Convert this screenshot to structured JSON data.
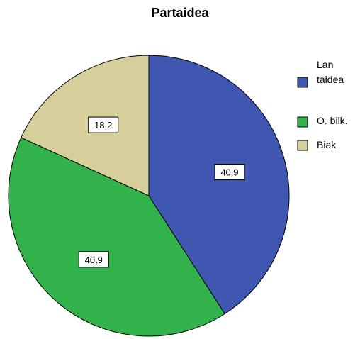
{
  "chart_data": {
    "type": "pie",
    "title": "Partaidea",
    "categories": [
      "Lan taldea",
      "O. bilk.",
      "Biak"
    ],
    "legend_lines": [
      [
        "Lan",
        "taldea"
      ],
      [
        "O. bilk."
      ],
      [
        "Biak"
      ]
    ],
    "values": [
      40.9,
      40.9,
      18.2
    ],
    "data_labels": [
      "40,9",
      "40,9",
      "18,2"
    ],
    "colors": [
      "#3f57b0",
      "#32b24a",
      "#d6cf9c"
    ],
    "start_angle_deg": 0,
    "direction": "clockwise",
    "legend_placement": "right"
  }
}
